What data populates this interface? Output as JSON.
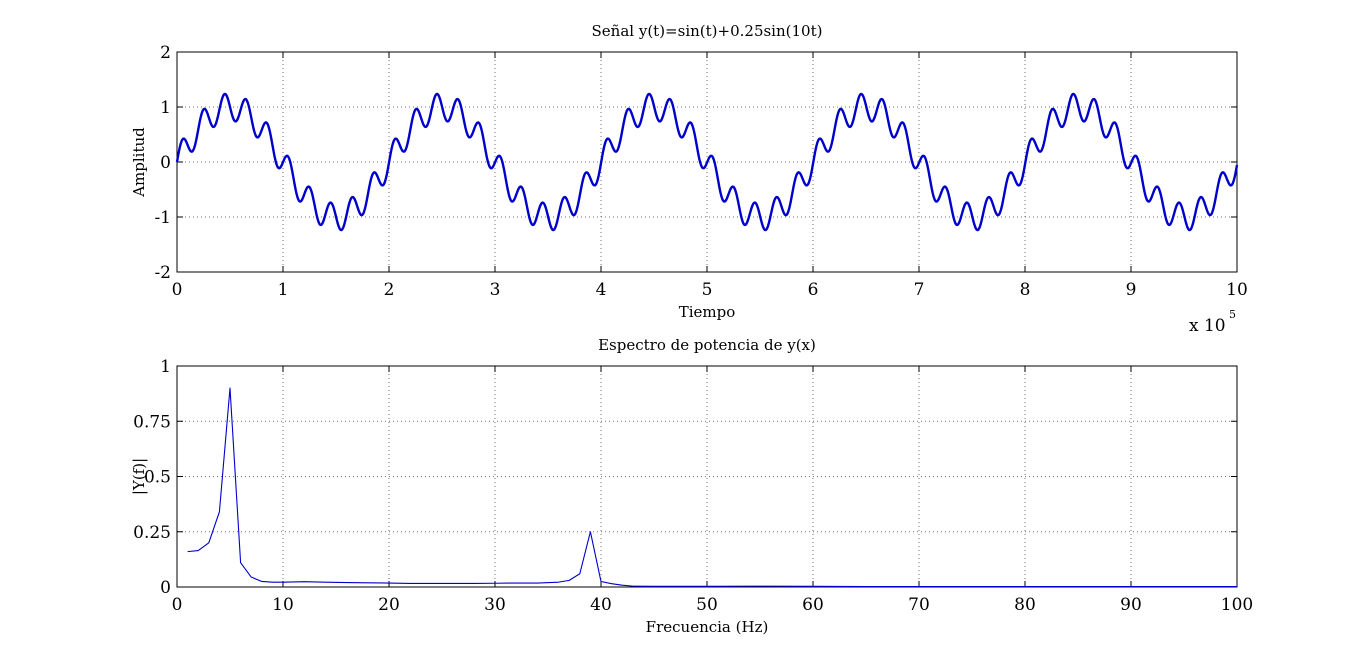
{
  "chart_data": [
    {
      "type": "line",
      "title": "Señal y(t)=sin(t)+0.25sin(10t)",
      "xlabel": "Tiempo",
      "ylabel": "Amplitud",
      "x_multiplier": "x 10",
      "x_multiplier_exp": "5",
      "xlim": [
        0,
        10
      ],
      "ylim": [
        -2,
        2
      ],
      "xticks": [
        "0",
        "1",
        "2",
        "3",
        "4",
        "5",
        "6",
        "7",
        "8",
        "9",
        "10"
      ],
      "yticks": [
        "-2",
        "-1",
        "0",
        "1",
        "2"
      ],
      "grid": true,
      "series": [
        {
          "color": "#0000cc",
          "formula": "sin(t) + 0.25*sin(10*t)",
          "t_range": [
            0,
            31.4
          ]
        }
      ]
    },
    {
      "type": "line",
      "title": "Espectro de potencia de y(x)",
      "xlabel": "Frecuencia (Hz)",
      "ylabel": "|Y(f)|",
      "xlim": [
        0,
        100
      ],
      "ylim": [
        0,
        1
      ],
      "xticks": [
        "0",
        "10",
        "20",
        "30",
        "40",
        "50",
        "60",
        "70",
        "80",
        "90",
        "100"
      ],
      "yticks": [
        "0",
        "0.25",
        "0.5",
        "0.75",
        "1"
      ],
      "grid": true,
      "series": [
        {
          "color": "#0000cc",
          "x": [
            1,
            2,
            3,
            4,
            5,
            6,
            7,
            8,
            9,
            10,
            12,
            14,
            16,
            18,
            20,
            22,
            25,
            28,
            30,
            32,
            34,
            36,
            37,
            38,
            39,
            40,
            41,
            42,
            43,
            45,
            50,
            55,
            60,
            65,
            70,
            80,
            90,
            100
          ],
          "y": [
            0.16,
            0.165,
            0.2,
            0.34,
            0.9,
            0.11,
            0.045,
            0.025,
            0.022,
            0.022,
            0.024,
            0.022,
            0.02,
            0.019,
            0.018,
            0.016,
            0.016,
            0.016,
            0.017,
            0.018,
            0.018,
            0.022,
            0.03,
            0.06,
            0.25,
            0.025,
            0.015,
            0.008,
            0.004,
            0.003,
            0.003,
            0.004,
            0.003,
            0.002,
            0.002,
            0.002,
            0.002,
            0.002
          ]
        }
      ]
    }
  ]
}
